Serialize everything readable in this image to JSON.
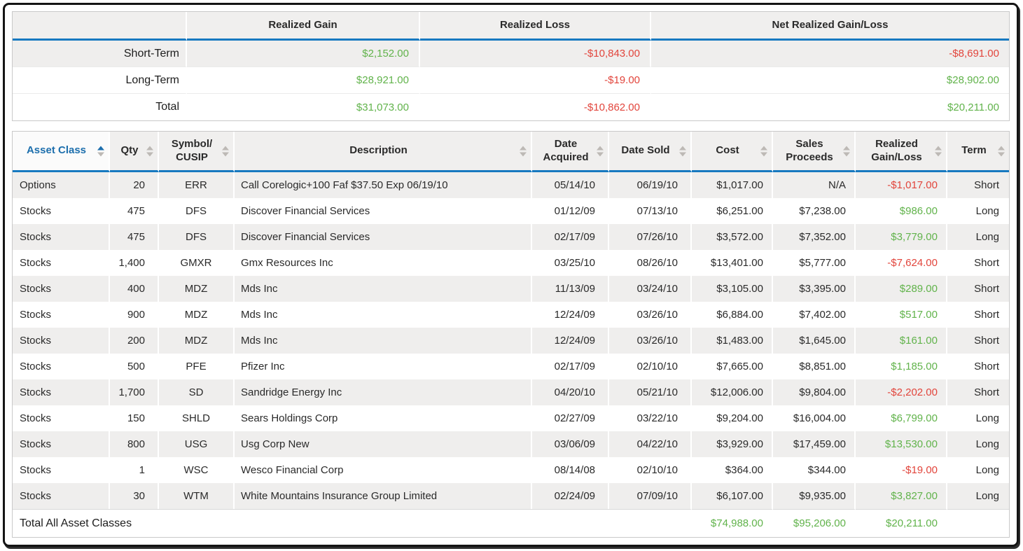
{
  "colors": {
    "gain_green": "#61b34b",
    "loss_red": "#e2453c",
    "sorted_header_blue": "#1d6fad",
    "header_underline_blue": "#1779c0",
    "header_bg_gray": "#f0efee",
    "row_shade_gray": "#efeeed"
  },
  "summary_table": {
    "columns": [
      "Realized Gain",
      "Realized Loss",
      "Net Realized Gain/Loss"
    ],
    "rows": [
      {
        "label": "Short-Term",
        "shaded": true,
        "values": [
          "$2,152.00",
          "-$10,843.00",
          "-$8,691.00"
        ]
      },
      {
        "label": "Long-Term",
        "shaded": false,
        "values": [
          "$28,921.00",
          "-$19.00",
          "$28,902.00"
        ]
      },
      {
        "label": "Total",
        "shaded": false,
        "values": [
          "$31,073.00",
          "-$10,862.00",
          "$20,211.00"
        ]
      }
    ]
  },
  "main_table": {
    "columns": [
      {
        "id": "asset-class",
        "label": "Asset Class",
        "sorted": "asc"
      },
      {
        "id": "qty",
        "label": "Qty"
      },
      {
        "id": "symbol-cusip",
        "label": "Symbol/\nCUSIP"
      },
      {
        "id": "description",
        "label": "Description"
      },
      {
        "id": "date-acquired",
        "label": "Date\nAcquired"
      },
      {
        "id": "date-sold",
        "label": "Date Sold"
      },
      {
        "id": "cost",
        "label": "Cost"
      },
      {
        "id": "sales-proceeds",
        "label": "Sales\nProceeds"
      },
      {
        "id": "realized-gain-loss",
        "label": "Realized\nGain/Loss"
      },
      {
        "id": "term",
        "label": "Term"
      }
    ],
    "rows": [
      [
        "Options",
        "20",
        "ERR",
        "Call Corelogic+100 Faf $37.50 Exp 06/19/10",
        "05/14/10",
        "06/19/10",
        "$1,017.00",
        "N/A",
        "-$1,017.00",
        "Short"
      ],
      [
        "Stocks",
        "475",
        "DFS",
        "Discover Financial Services",
        "01/12/09",
        "07/13/10",
        "$6,251.00",
        "$7,238.00",
        "$986.00",
        "Long"
      ],
      [
        "Stocks",
        "475",
        "DFS",
        "Discover Financial Services",
        "02/17/09",
        "07/26/10",
        "$3,572.00",
        "$7,352.00",
        "$3,779.00",
        "Long"
      ],
      [
        "Stocks",
        "1,400",
        "GMXR",
        "Gmx Resources Inc",
        "03/25/10",
        "08/26/10",
        "$13,401.00",
        "$5,777.00",
        "-$7,624.00",
        "Short"
      ],
      [
        "Stocks",
        "400",
        "MDZ",
        "Mds Inc",
        "11/13/09",
        "03/24/10",
        "$3,105.00",
        "$3,395.00",
        "$289.00",
        "Short"
      ],
      [
        "Stocks",
        "900",
        "MDZ",
        "Mds Inc",
        "12/24/09",
        "03/26/10",
        "$6,884.00",
        "$7,402.00",
        "$517.00",
        "Short"
      ],
      [
        "Stocks",
        "200",
        "MDZ",
        "Mds Inc",
        "12/24/09",
        "03/26/10",
        "$1,483.00",
        "$1,645.00",
        "$161.00",
        "Short"
      ],
      [
        "Stocks",
        "500",
        "PFE",
        "Pfizer Inc",
        "02/17/09",
        "02/10/10",
        "$7,665.00",
        "$8,851.00",
        "$1,185.00",
        "Short"
      ],
      [
        "Stocks",
        "1,700",
        "SD",
        "Sandridge Energy Inc",
        "04/20/10",
        "05/21/10",
        "$12,006.00",
        "$9,804.00",
        "-$2,202.00",
        "Short"
      ],
      [
        "Stocks",
        "150",
        "SHLD",
        "Sears Holdings Corp",
        "02/27/09",
        "03/22/10",
        "$9,204.00",
        "$16,004.00",
        "$6,799.00",
        "Long"
      ],
      [
        "Stocks",
        "800",
        "USG",
        "Usg Corp New",
        "03/06/09",
        "04/22/10",
        "$3,929.00",
        "$17,459.00",
        "$13,530.00",
        "Long"
      ],
      [
        "Stocks",
        "1",
        "WSC",
        "Wesco Financial Corp",
        "08/14/08",
        "02/10/10",
        "$364.00",
        "$344.00",
        "-$19.00",
        "Long"
      ],
      [
        "Stocks",
        "30",
        "WTM",
        "White Mountains Insurance Group Limited",
        "02/24/09",
        "07/09/10",
        "$6,107.00",
        "$9,935.00",
        "$3,827.00",
        "Long"
      ]
    ],
    "footer": {
      "label": "Total All Asset Classes",
      "cost": "$74,988.00",
      "sales_proceeds": "$95,206.00",
      "realized_gain_loss": "$20,211.00"
    }
  }
}
